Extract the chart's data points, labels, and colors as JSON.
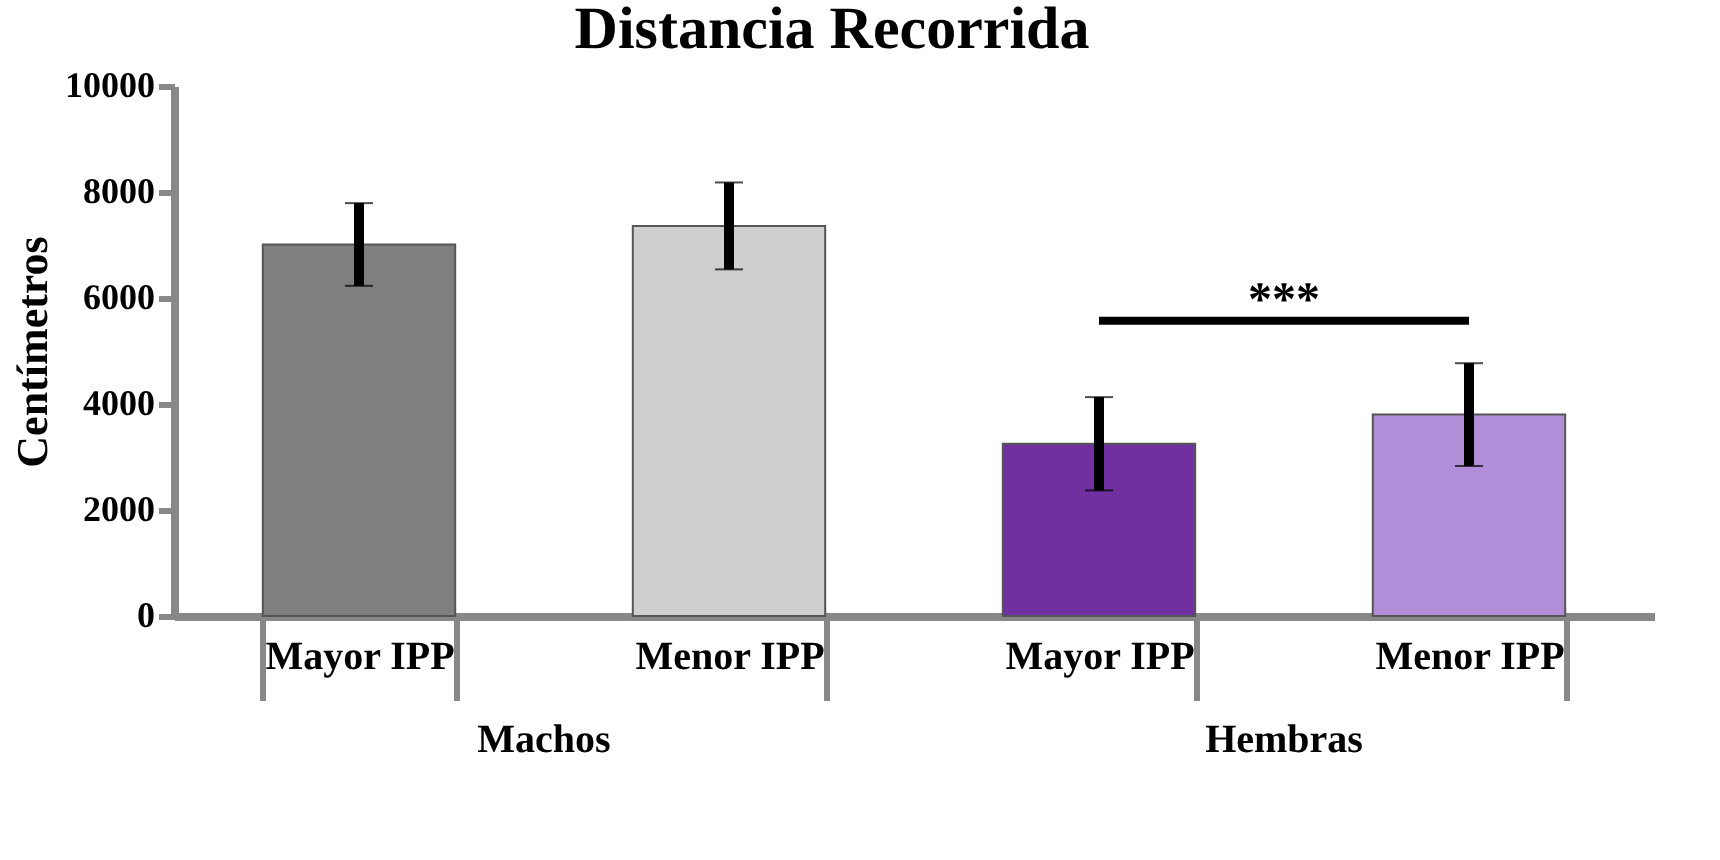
{
  "chart_data": {
    "type": "bar",
    "title": "Distancia Recorrida",
    "ylabel": "Centímetros",
    "categories": [
      "Mayor IPP",
      "Menor IPP",
      "Mayor IPP",
      "Menor IPP"
    ],
    "values": [
      7010,
      7360,
      3250,
      3800
    ],
    "errors": [
      780,
      820,
      880,
      970
    ],
    "colors": [
      "#7f7f7f",
      "#cfcfcf",
      "#7030a0",
      "#b28ed8"
    ],
    "ylim": [
      0,
      10000
    ],
    "yticks": [
      0,
      2000,
      4000,
      6000,
      8000,
      10000
    ],
    "grid": false,
    "annotations": [
      "***",
      "Machos",
      "Hembras"
    ]
  }
}
